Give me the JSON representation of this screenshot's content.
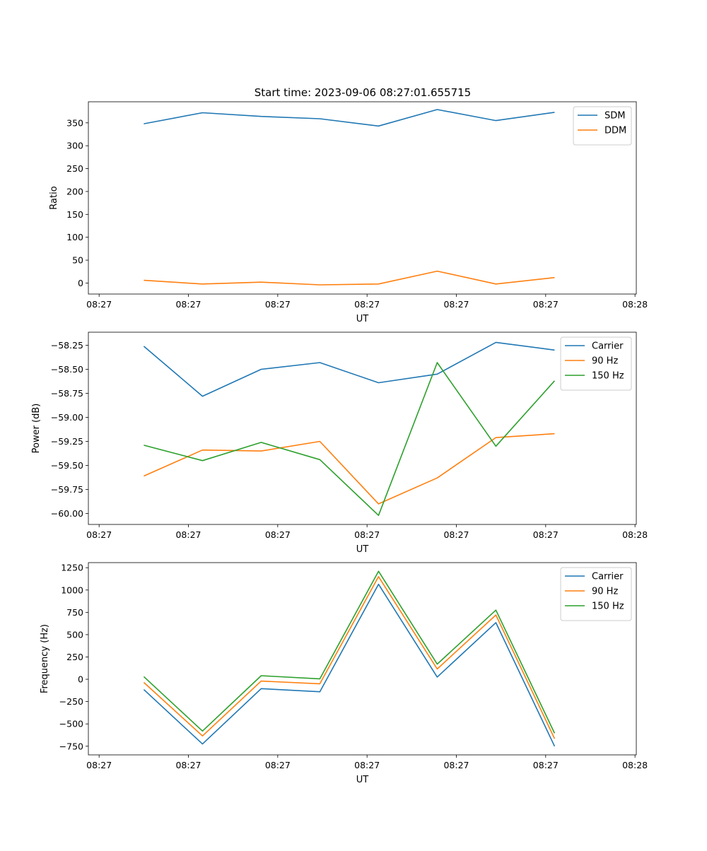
{
  "figure_title": "Start time: 2023-09-06 08:27:01.655715",
  "colors": {
    "blue": "#1f77b4",
    "orange": "#ff7f0e",
    "green": "#2ca02c"
  },
  "chart_data": [
    {
      "type": "line",
      "title": "Start time: 2023-09-06 08:27:01.655715",
      "xlabel": "UT",
      "ylabel": "Ratio",
      "xtick_labels": [
        "08:27",
        "08:27",
        "08:27",
        "08:27",
        "08:27",
        "08:27",
        "08:28"
      ],
      "ylim": [
        -24,
        396
      ],
      "yticks": [
        0,
        50,
        100,
        150,
        200,
        250,
        300,
        350
      ],
      "ytick_labels": [
        "0",
        "50",
        "100",
        "150",
        "200",
        "250",
        "300",
        "350"
      ],
      "legend_position": "top-right",
      "series": [
        {
          "name": "SDM",
          "color": "#1f77b4",
          "values": [
            348,
            372,
            364,
            359,
            343,
            379,
            355,
            373
          ]
        },
        {
          "name": "DDM",
          "color": "#ff7f0e",
          "values": [
            6,
            -2,
            2,
            -4,
            -2,
            26,
            -2,
            12
          ]
        }
      ]
    },
    {
      "type": "line",
      "xlabel": "UT",
      "ylabel": "Power (dB)",
      "xtick_labels": [
        "08:27",
        "08:27",
        "08:27",
        "08:27",
        "08:27",
        "08:27",
        "08:28"
      ],
      "ylim": [
        -60.114,
        -58.114
      ],
      "yticks": [
        -60.0,
        -59.75,
        -59.5,
        -59.25,
        -59.0,
        -58.75,
        -58.5,
        -58.25
      ],
      "ytick_labels": [
        "−60.00",
        "−59.75",
        "−59.50",
        "−59.25",
        "−59.00",
        "−58.75",
        "−58.50",
        "−58.25"
      ],
      "legend_position": "top-right",
      "series": [
        {
          "name": "Carrier",
          "color": "#1f77b4",
          "values": [
            -58.26,
            -58.78,
            -58.5,
            -58.43,
            -58.64,
            -58.55,
            -58.22,
            -58.3
          ]
        },
        {
          "name": "90 Hz",
          "color": "#ff7f0e",
          "values": [
            -59.61,
            -59.34,
            -59.35,
            -59.25,
            -59.9,
            -59.63,
            -59.21,
            -59.17
          ]
        },
        {
          "name": "150 Hz",
          "color": "#2ca02c",
          "values": [
            -59.29,
            -59.45,
            -59.26,
            -59.44,
            -60.02,
            -58.43,
            -59.3,
            -58.62
          ]
        }
      ]
    },
    {
      "type": "line",
      "xlabel": "UT",
      "ylabel": "Frequency (Hz)",
      "xtick_labels": [
        "08:27",
        "08:27",
        "08:27",
        "08:27",
        "08:27",
        "08:27",
        "08:28"
      ],
      "ylim": [
        -847,
        1307
      ],
      "yticks": [
        -750,
        -500,
        -250,
        0,
        250,
        500,
        750,
        1000,
        1250
      ],
      "ytick_labels": [
        "−750",
        "−500",
        "−250",
        "0",
        "250",
        "500",
        "750",
        "1000",
        "1250"
      ],
      "legend_position": "top-right",
      "series": [
        {
          "name": "Carrier",
          "color": "#1f77b4",
          "values": [
            -115,
            -725,
            -105,
            -140,
            1065,
            25,
            635,
            -750
          ]
        },
        {
          "name": "90 Hz",
          "color": "#ff7f0e",
          "values": [
            -35,
            -635,
            -20,
            -50,
            1150,
            115,
            720,
            -665
          ]
        },
        {
          "name": "150 Hz",
          "color": "#2ca02c",
          "values": [
            30,
            -580,
            40,
            5,
            1210,
            170,
            775,
            -605
          ]
        }
      ]
    }
  ]
}
